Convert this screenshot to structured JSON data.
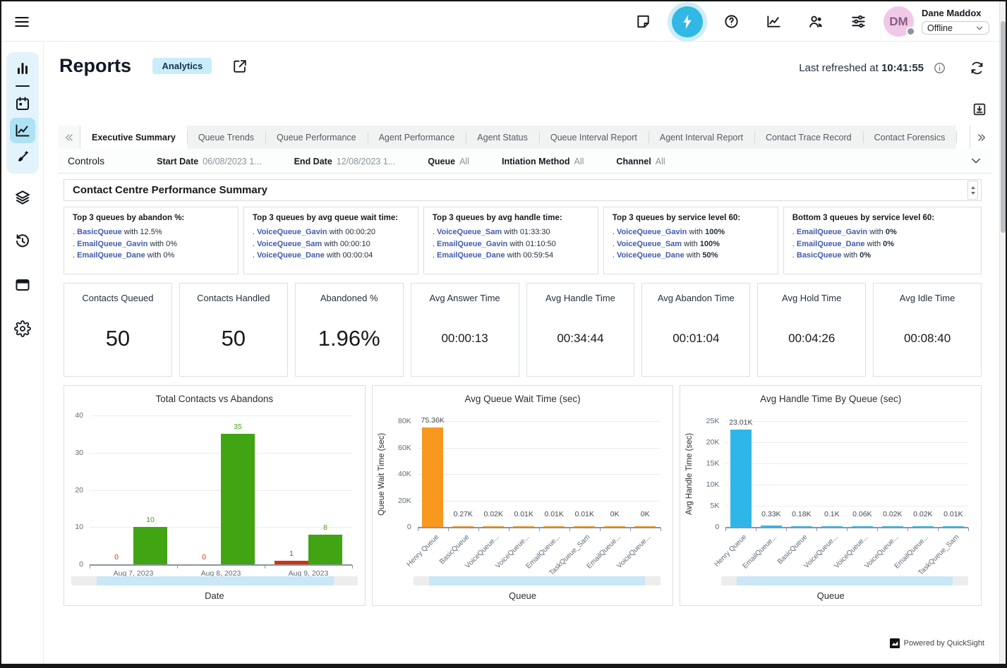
{
  "colors": {
    "accent_cyan": "#31b8e4",
    "badge_bg": "#c9edfa",
    "link_blue": "#3f5bb0",
    "green": "#41a412",
    "red": "#d13212",
    "orange": "#f9981e",
    "bar_blue": "#2fb6e8",
    "avatar_pink": "#f0c9e8"
  },
  "topbar": {
    "icons": [
      "note",
      "lightning",
      "help",
      "line-chart",
      "people",
      "sliders"
    ],
    "user": {
      "initials": "DM",
      "name": "Dane Maddox",
      "status": "Offline"
    }
  },
  "sidebar": {
    "group": [
      "bar-chart",
      "divider",
      "calendar",
      "line-chart",
      "design"
    ],
    "lower": [
      "layers",
      "history",
      "window",
      "settings"
    ],
    "active": "line-chart"
  },
  "header": {
    "title": "Reports",
    "badge": "Analytics",
    "last_refreshed_label": "Last refreshed at",
    "last_refreshed_time": "10:41:55"
  },
  "tabs": {
    "items": [
      "Executive Summary",
      "Queue Trends",
      "Queue Performance",
      "Agent Performance",
      "Agent Status",
      "Queue Interval Report",
      "Agent Interval Report",
      "Contact Trace Record",
      "Contact Forensics"
    ],
    "active": "Executive Summary"
  },
  "controls": {
    "label": "Controls",
    "filters": [
      {
        "label": "Start Date",
        "value": "06/08/2023 1..."
      },
      {
        "label": "End Date",
        "value": "12/08/2023 1..."
      },
      {
        "label": "Queue",
        "value": "All"
      },
      {
        "label": "Intiation Method",
        "value": "All"
      },
      {
        "label": "Channel",
        "value": "All"
      }
    ]
  },
  "summary": {
    "title": "Contact Centre Performance Summary",
    "cards": [
      {
        "title": "Top 3 queues by abandon %:",
        "items": [
          {
            "queue": "BasicQueue",
            "value": "12.5%",
            "bold": false
          },
          {
            "queue": "EmailQueue_Gavin",
            "value": "0%",
            "bold": false
          },
          {
            "queue": "EmailQueue_Dane",
            "value": "0%",
            "bold": false
          }
        ]
      },
      {
        "title": "Top 3 queues by avg queue wait time:",
        "items": [
          {
            "queue": "VoiceQueue_Gavin",
            "value": "00:00:20",
            "bold": false
          },
          {
            "queue": "VoiceQueue_Sam",
            "value": "00:00:10",
            "bold": false
          },
          {
            "queue": "VoiceQueue_Dane",
            "value": "00:00:04",
            "bold": false
          }
        ]
      },
      {
        "title": "Top 3 queues by avg handle time:",
        "items": [
          {
            "queue": "VoiceQueue_Sam",
            "value": "01:33:30",
            "bold": false
          },
          {
            "queue": "EmailQueue_Gavin",
            "value": "01:10:50",
            "bold": false
          },
          {
            "queue": "EmailQueue_Dane",
            "value": "00:59:54",
            "bold": false
          }
        ]
      },
      {
        "title": "Top 3 queues by service level 60:",
        "items": [
          {
            "queue": "VoiceQueue_Gavin",
            "value": "100%",
            "bold": true
          },
          {
            "queue": "VoiceQueue_Sam",
            "value": "100%",
            "bold": true
          },
          {
            "queue": "VoiceQueue_Dane",
            "value": "50%",
            "bold": true
          }
        ]
      },
      {
        "title": "Bottom 3 queues by service level 60:",
        "items": [
          {
            "queue": "EmailQueue_Gavin",
            "value": "0%",
            "bold": true
          },
          {
            "queue": "EmailQueue_Dane",
            "value": "0%",
            "bold": true
          },
          {
            "queue": "BasicQueue",
            "value": "0%",
            "bold": true
          }
        ]
      }
    ]
  },
  "kpis": [
    {
      "label": "Contacts Queued",
      "value": "50",
      "big": true
    },
    {
      "label": "Contacts Handled",
      "value": "50",
      "big": true
    },
    {
      "label": "Abandoned %",
      "value": "1.96%",
      "big": true
    },
    {
      "label": "Avg Answer Time",
      "value": "00:00:13",
      "big": false
    },
    {
      "label": "Avg Handle Time",
      "value": "00:34:44",
      "big": false
    },
    {
      "label": "Avg Abandon Time",
      "value": "00:01:04",
      "big": false
    },
    {
      "label": "Avg Hold Time",
      "value": "00:04:26",
      "big": false
    },
    {
      "label": "Avg Idle Time",
      "value": "00:08:40",
      "big": false
    }
  ],
  "chart_data": [
    {
      "type": "bar",
      "title": "Total Contacts vs Abandons",
      "xlabel": "Date",
      "ylabel": "",
      "categories": [
        "Aug 7, 2023",
        "Aug 8, 2023",
        "Aug 9, 2023"
      ],
      "series": [
        {
          "name": "Abandons",
          "color": "#d13212",
          "values": [
            0,
            0,
            1
          ]
        },
        {
          "name": "Total Contacts",
          "color": "#41a412",
          "values": [
            10,
            35,
            8
          ]
        }
      ],
      "ylim": [
        0,
        40
      ],
      "yticks": [
        "40",
        "30",
        "20",
        "10",
        "0"
      ],
      "grid": true,
      "value_labels": true,
      "rotated_labels": false
    },
    {
      "type": "bar",
      "title": "Avg Queue Wait Time (sec)",
      "xlabel": "Queue",
      "ylabel": "Queue Wait Time (sec)",
      "categories": [
        "Henry Queue",
        "BasicQueue",
        "VoiceQueue...",
        "VoiceQueue...",
        "EmailQueue...",
        "TaskQueue_Sam",
        "EmailQueue...",
        "VoiceQueue..."
      ],
      "values": [
        75360,
        270,
        20,
        10,
        10,
        10,
        0,
        0
      ],
      "value_labels_text": [
        "75.36K",
        "0.27K",
        "0.02K",
        "0.01K",
        "0.01K",
        "0.01K",
        "0K",
        "0K"
      ],
      "color": "#f9981e",
      "ylim": [
        0,
        80000
      ],
      "yticks": [
        "80K",
        "60K",
        "40K",
        "20K",
        "0"
      ],
      "grid": true,
      "value_labels": true,
      "rotated_labels": true
    },
    {
      "type": "bar",
      "title": "Avg Handle Time By Queue (sec)",
      "xlabel": "Queue",
      "ylabel": "Avg Handle Time (sec)",
      "categories": [
        "Henry Queue",
        "EmailQueue...",
        "BasicQueue",
        "VoiceQueue...",
        "VoiceQueue...",
        "VoiceQueue...",
        "EmailQueue...",
        "TaskQueue_Sam"
      ],
      "values": [
        23010,
        330,
        180,
        100,
        60,
        20,
        20,
        10
      ],
      "value_labels_text": [
        "23.01K",
        "0.33K",
        "0.18K",
        "0.1K",
        "0.06K",
        "0.02K",
        "0.02K",
        "0.01K"
      ],
      "color": "#2fb6e8",
      "ylim": [
        0,
        25000
      ],
      "yticks": [
        "25K",
        "20K",
        "15K",
        "10K",
        "5K",
        "0"
      ],
      "grid": true,
      "value_labels": true,
      "rotated_labels": true
    }
  ],
  "footer": {
    "powered_by": "Powered by QuickSight"
  }
}
